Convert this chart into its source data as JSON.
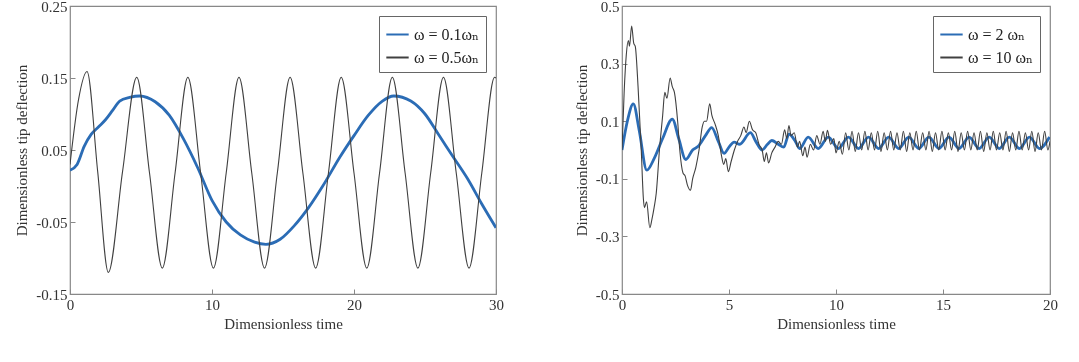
{
  "chart_data": [
    {
      "type": "line",
      "xlabel": "Dimensionless time",
      "ylabel": "Dimensionless tip deflection",
      "xlim": [
        0,
        30
      ],
      "xticks": [
        0,
        10,
        20,
        30
      ],
      "ylim": [
        -0.15,
        0.25
      ],
      "yticks": [
        -0.15,
        -0.05,
        0.05,
        0.15,
        0.25
      ],
      "legend": "top right",
      "series": [
        {
          "name": "ω = 0.1ωₙ",
          "color": "#2b6cb5",
          "x": [
            0,
            0.5,
            1,
            1.5,
            2,
            2.5,
            3,
            3.5,
            4.2,
            4.9,
            6,
            7,
            8,
            9,
            10,
            11,
            12,
            13,
            13.8,
            14.8,
            15.8,
            16.8,
            17.8,
            19,
            20,
            21,
            22,
            22.8,
            24,
            25,
            26,
            27,
            28,
            29,
            30
          ],
          "values": [
            0.022,
            0.03,
            0.055,
            0.072,
            0.082,
            0.092,
            0.105,
            0.118,
            0.123,
            0.125,
            0.117,
            0.098,
            0.065,
            0.025,
            -0.02,
            -0.05,
            -0.068,
            -0.078,
            -0.081,
            -0.074,
            -0.055,
            -0.03,
            0.0,
            0.04,
            0.07,
            0.098,
            0.118,
            0.125,
            0.118,
            0.1,
            0.07,
            0.04,
            0.01,
            -0.025,
            -0.058
          ]
        },
        {
          "name": "ω = 0.5ωₙ",
          "color": "#404040",
          "x": [
            0,
            0.6,
            1.2,
            1.95,
            2.7,
            3.7,
            4.7,
            5.6,
            6.5,
            7.4,
            8.3,
            9.2,
            10.1,
            11.0,
            11.9,
            12.8,
            13.7,
            14.6,
            15.5,
            16.4,
            17.3,
            18.2,
            19.1,
            20.0,
            20.9,
            21.8,
            22.7,
            23.6,
            24.5,
            25.4,
            26.3,
            27.2,
            28.1,
            29.0,
            29.9,
            30
          ],
          "values": [
            0.03,
            0.12,
            0.159,
            0.02,
            -0.12,
            0.02,
            0.151,
            0.018,
            -0.114,
            0.018,
            0.151,
            0.018,
            -0.114,
            0.018,
            0.151,
            0.018,
            -0.114,
            0.018,
            0.151,
            0.018,
            -0.114,
            0.018,
            0.151,
            0.018,
            -0.114,
            0.018,
            0.151,
            0.018,
            -0.114,
            0.018,
            0.151,
            0.018,
            -0.114,
            0.018,
            0.151,
            0.15
          ]
        }
      ]
    },
    {
      "type": "line",
      "xlabel": "Dimensionless time",
      "ylabel": "Dimensionless tip deflection",
      "xlim": [
        0,
        20
      ],
      "xticks": [
        0,
        5,
        10,
        15,
        20
      ],
      "ylim": [
        -0.5,
        0.5
      ],
      "yticks": [
        -0.5,
        -0.3,
        -0.1,
        0.1,
        0.3,
        0.5
      ],
      "legend": "top right",
      "series": [
        {
          "name": "ω = 2 ωₙ",
          "color": "#2b6cb5",
          "x": [
            0,
            0.25,
            0.53,
            0.8,
            1.16,
            1.5,
            1.9,
            2.35,
            2.65,
            2.98,
            3.3,
            3.56,
            3.9,
            4.19,
            4.5,
            4.77,
            5.0,
            5.24,
            5.5,
            6.0,
            6.25,
            6.54,
            6.8,
            7.0,
            7.3,
            7.56,
            7.8,
            8.1,
            8.3,
            8.7,
            9.17,
            9.64,
            10.11,
            10.58,
            11.05,
            11.52,
            11.99,
            12.46,
            12.93,
            13.4,
            13.87,
            14.34,
            14.81,
            15.28,
            15.75,
            16.22,
            16.69,
            17.16,
            17.63,
            18.1,
            18.57,
            19.04,
            19.51,
            19.98
          ],
          "values": [
            0.0,
            0.1,
            0.16,
            0.07,
            -0.07,
            -0.03,
            0.04,
            0.107,
            0.04,
            -0.033,
            0.0,
            0.013,
            0.05,
            0.078,
            0.03,
            -0.012,
            0.01,
            0.027,
            0.02,
            0.06,
            0.03,
            0.0,
            0.02,
            0.033,
            0.02,
            0.01,
            0.055,
            0.03,
            0.005,
            0.045,
            0.005,
            0.045,
            0.005,
            0.045,
            0.005,
            0.045,
            0.005,
            0.045,
            0.005,
            0.045,
            0.005,
            0.045,
            0.005,
            0.045,
            0.005,
            0.045,
            0.005,
            0.045,
            0.005,
            0.045,
            0.005,
            0.045,
            0.005,
            0.045
          ]
        },
        {
          "name": "ω = 10 ωₙ",
          "color": "#404040",
          "x": [
            0,
            0.1,
            0.2,
            0.3,
            0.35,
            0.45,
            0.55,
            0.62,
            0.75,
            0.9,
            1.0,
            1.05,
            1.15,
            1.3,
            1.4,
            1.5,
            1.6,
            1.75,
            1.9,
            2.0,
            2.1,
            2.25,
            2.35,
            2.45,
            2.6,
            2.7,
            2.85,
            2.95,
            3.05,
            3.2,
            3.3,
            3.45,
            3.6,
            3.75,
            3.85,
            3.95,
            4.1,
            4.2,
            4.35,
            4.5,
            4.65,
            4.75,
            4.85,
            4.97,
            5.1,
            5.25,
            5.4,
            5.55,
            5.7,
            5.8,
            5.95,
            6.1,
            6.25,
            6.4,
            6.55,
            6.65,
            6.75,
            6.85,
            7.0,
            7.15,
            7.3,
            7.45,
            7.6,
            7.7,
            7.8,
            7.9,
            8.05,
            8.2,
            8.3,
            8.45,
            8.55,
            8.65,
            8.8,
            8.95,
            9.1,
            9.25,
            9.4,
            9.5,
            9.6,
            9.75,
            9.9,
            10.0,
            10.15,
            10.3,
            10.45,
            10.6,
            10.75,
            10.9,
            11.05,
            11.2,
            11.35,
            11.5,
            11.65,
            11.8,
            11.95,
            12.1,
            12.25,
            12.4,
            12.55,
            12.7,
            12.85,
            13.0,
            13.15,
            13.3,
            13.45,
            13.6,
            13.75,
            13.9,
            14.05,
            14.2,
            14.35,
            14.5,
            14.65,
            14.8,
            14.95,
            15.1,
            15.25,
            15.4,
            15.55,
            15.7,
            15.85,
            16.0,
            16.15,
            16.3,
            16.45,
            16.6,
            16.75,
            16.9,
            17.05,
            17.2,
            17.35,
            17.5,
            17.65,
            17.8,
            17.95,
            18.1,
            18.25,
            18.4,
            18.55,
            18.7,
            18.85,
            19.0,
            19.15,
            19.3,
            19.45,
            19.6,
            19.75,
            19.9,
            20.0
          ],
          "values": [
            0.0,
            0.2,
            0.33,
            0.38,
            0.36,
            0.43,
            0.37,
            0.36,
            0.22,
            0.0,
            -0.17,
            -0.2,
            -0.18,
            -0.27,
            -0.24,
            -0.2,
            -0.15,
            0.0,
            0.12,
            0.2,
            0.18,
            0.25,
            0.22,
            0.2,
            0.1,
            0.0,
            -0.08,
            -0.09,
            -0.12,
            -0.14,
            -0.1,
            -0.06,
            0.0,
            0.08,
            0.1,
            0.1,
            0.16,
            0.12,
            0.09,
            0.05,
            -0.02,
            -0.05,
            -0.03,
            -0.075,
            -0.04,
            0.0,
            0.03,
            0.05,
            0.08,
            0.06,
            0.1,
            0.07,
            0.06,
            0.02,
            0.0,
            -0.04,
            -0.01,
            -0.045,
            -0.01,
            0.01,
            0.03,
            0.02,
            0.07,
            0.04,
            0.085,
            0.05,
            0.06,
            0.01,
            0.03,
            -0.02,
            0.01,
            -0.025,
            0.02,
            0.0,
            0.05,
            0.02,
            0.065,
            0.03,
            0.068,
            0.02,
            0.04,
            -0.01,
            0.03,
            -0.015,
            0.06,
            0.0,
            0.065,
            -0.005,
            0.06,
            0.0,
            0.065,
            0.0,
            0.06,
            0.0,
            0.065,
            -0.005,
            0.06,
            0.0,
            0.065,
            0.0,
            0.06,
            0.0,
            0.065,
            -0.005,
            0.06,
            0.0,
            0.065,
            0.0,
            0.06,
            0.0,
            0.065,
            -0.005,
            0.06,
            0.0,
            0.065,
            0.0,
            0.06,
            0.0,
            0.065,
            -0.005,
            0.06,
            0.0,
            0.065,
            0.0,
            0.06,
            0.0,
            0.065,
            -0.005,
            0.06,
            0.0,
            0.065,
            0.0,
            0.06,
            0.0,
            0.065,
            -0.005,
            0.06,
            0.0,
            0.065,
            0.0,
            0.06,
            0.0,
            0.065,
            -0.005,
            0.06,
            0.0,
            0.065,
            0.0,
            0.03
          ]
        }
      ]
    }
  ]
}
